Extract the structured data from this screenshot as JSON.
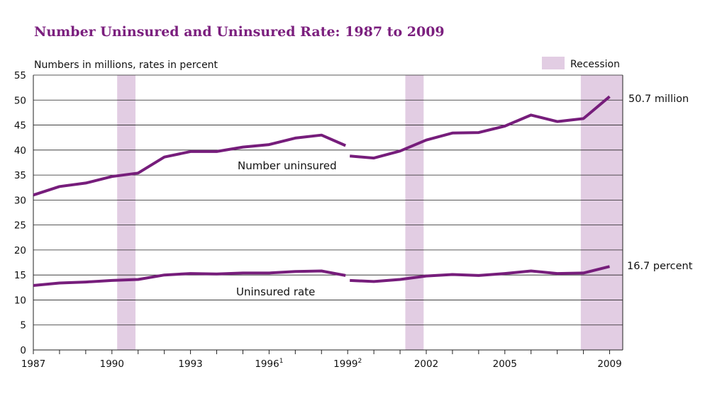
{
  "chart_data": {
    "type": "line",
    "title": "Number Uninsured and Uninsured Rate: 1987 to 2009",
    "ylabel": "Numbers in millions, rates in percent",
    "xlabel": "",
    "ylim": [
      0,
      55
    ],
    "yticks": [
      0,
      5,
      10,
      15,
      20,
      25,
      30,
      35,
      40,
      45,
      50,
      55
    ],
    "xlim": [
      1987,
      2009.5
    ],
    "xticks": [
      {
        "value": 1987,
        "label": "1987",
        "sup": ""
      },
      {
        "value": 1990,
        "label": "1990",
        "sup": ""
      },
      {
        "value": 1993,
        "label": "1993",
        "sup": ""
      },
      {
        "value": 1996,
        "label": "1996",
        "sup": "1"
      },
      {
        "value": 1999,
        "label": "1999",
        "sup": "2"
      },
      {
        "value": 2002,
        "label": "2002",
        "sup": ""
      },
      {
        "value": 2005,
        "label": "2005",
        "sup": ""
      },
      {
        "value": 2009,
        "label": "2009",
        "sup": ""
      }
    ],
    "grid": "horizontal",
    "legend": {
      "label": "Recession",
      "color": "#e2cde3",
      "position": "top-right"
    },
    "recessions": [
      {
        "start": 1990.2,
        "end": 1990.9
      },
      {
        "start": 2001.2,
        "end": 2001.9
      },
      {
        "start": 2007.9,
        "end": 2009.5
      }
    ],
    "series": [
      {
        "name": "Number uninsured",
        "end_label": "50.7 million",
        "segments": [
          {
            "x": [
              1987,
              1988,
              1989,
              1990,
              1991,
              1992,
              1993,
              1994,
              1995,
              1996,
              1997,
              1998,
              1999
            ],
            "values": [
              31.0,
              32.7,
              33.4,
              34.7,
              35.4,
              38.6,
              39.7,
              39.7,
              40.6,
              41.1,
              42.4,
              43.0,
              40.9
            ]
          },
          {
            "x": [
              1999,
              2000,
              2001,
              2002,
              2003,
              2004,
              2005,
              2006,
              2007,
              2008,
              2009
            ],
            "values": [
              38.8,
              38.4,
              39.8,
              42.0,
              43.4,
              43.5,
              44.8,
              47.0,
              45.7,
              46.3,
              50.7
            ]
          }
        ]
      },
      {
        "name": "Uninsured rate",
        "end_label": "16.7 percent",
        "segments": [
          {
            "x": [
              1987,
              1988,
              1989,
              1990,
              1991,
              1992,
              1993,
              1994,
              1995,
              1996,
              1997,
              1998,
              1999
            ],
            "values": [
              12.9,
              13.4,
              13.6,
              13.9,
              14.1,
              15.0,
              15.3,
              15.2,
              15.4,
              15.4,
              15.7,
              15.8,
              14.9
            ]
          },
          {
            "x": [
              1999,
              2000,
              2001,
              2002,
              2003,
              2004,
              2005,
              2006,
              2007,
              2008,
              2009
            ],
            "values": [
              13.9,
              13.7,
              14.1,
              14.8,
              15.1,
              14.9,
              15.3,
              15.8,
              15.3,
              15.4,
              16.7
            ]
          }
        ]
      }
    ],
    "colors": {
      "line": "#761d7b",
      "recession": "#e2cde3",
      "title": "#7b1f7e",
      "grid": "#222222"
    }
  }
}
